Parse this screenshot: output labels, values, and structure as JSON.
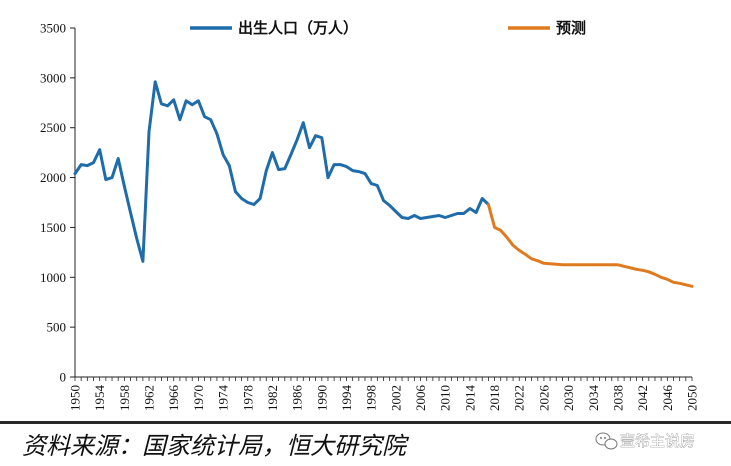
{
  "chart_data": {
    "type": "line",
    "title": "",
    "xlabel": "",
    "ylabel": "",
    "ylim": [
      0,
      3500
    ],
    "y_ticks": [
      0,
      500,
      1000,
      1500,
      2000,
      2500,
      3000,
      3500
    ],
    "xlim": [
      1950,
      2050
    ],
    "x_tick_labels": [
      "1950",
      "1954",
      "1958",
      "1962",
      "1966",
      "1970",
      "1974",
      "1978",
      "1982",
      "1986",
      "1990",
      "1994",
      "1998",
      "2002",
      "2006",
      "2010",
      "2014",
      "2018",
      "2022",
      "2026",
      "2030",
      "2034",
      "2038",
      "2042",
      "2046",
      "2050"
    ],
    "legend_position": "top",
    "grid": false,
    "series": [
      {
        "name": "出生人口（万人）",
        "color": "#1f6cab",
        "x": [
          1950,
          1951,
          1952,
          1953,
          1954,
          1955,
          1956,
          1957,
          1958,
          1959,
          1960,
          1961,
          1962,
          1963,
          1964,
          1965,
          1966,
          1967,
          1968,
          1969,
          1970,
          1971,
          1972,
          1973,
          1974,
          1975,
          1976,
          1977,
          1978,
          1979,
          1980,
          1981,
          1982,
          1983,
          1984,
          1985,
          1986,
          1987,
          1988,
          1989,
          1990,
          1991,
          1992,
          1993,
          1994,
          1995,
          1996,
          1997,
          1998,
          1999,
          2000,
          2001,
          2002,
          2003,
          2004,
          2005,
          2006,
          2007,
          2008,
          2009,
          2010,
          2011,
          2012,
          2013,
          2014,
          2015,
          2016,
          2017
        ],
        "values": [
          2040,
          2130,
          2120,
          2150,
          2280,
          1980,
          2000,
          2190,
          1910,
          1650,
          1390,
          1160,
          2460,
          2960,
          2740,
          2720,
          2780,
          2580,
          2770,
          2730,
          2770,
          2610,
          2580,
          2440,
          2230,
          2120,
          1860,
          1790,
          1750,
          1730,
          1790,
          2070,
          2250,
          2080,
          2090,
          2230,
          2380,
          2550,
          2300,
          2420,
          2400,
          2000,
          2130,
          2130,
          2110,
          2070,
          2060,
          2040,
          1940,
          1920,
          1770,
          1720,
          1660,
          1600,
          1590,
          1620,
          1590,
          1600,
          1610,
          1620,
          1600,
          1620,
          1640,
          1640,
          1690,
          1650,
          1790,
          1730
        ]
      },
      {
        "name": "预测",
        "color": "#e07a1f",
        "x": [
          2017,
          2018,
          2019,
          2020,
          2021,
          2022,
          2023,
          2024,
          2025,
          2026,
          2027,
          2028,
          2029,
          2030,
          2031,
          2032,
          2033,
          2034,
          2035,
          2036,
          2037,
          2038,
          2039,
          2040,
          2041,
          2042,
          2043,
          2044,
          2045,
          2046,
          2047,
          2048,
          2049,
          2050
        ],
        "values": [
          1730,
          1500,
          1470,
          1400,
          1320,
          1270,
          1230,
          1185,
          1165,
          1140,
          1135,
          1130,
          1125,
          1125,
          1125,
          1125,
          1125,
          1125,
          1125,
          1125,
          1125,
          1125,
          1110,
          1095,
          1080,
          1070,
          1055,
          1030,
          1000,
          980,
          950,
          940,
          925,
          910
        ]
      }
    ]
  },
  "source_note": "资料来源：国家统计局，恒大研究院",
  "watermark": {
    "text": "壹希主说房",
    "icon": "wechat-icon"
  }
}
